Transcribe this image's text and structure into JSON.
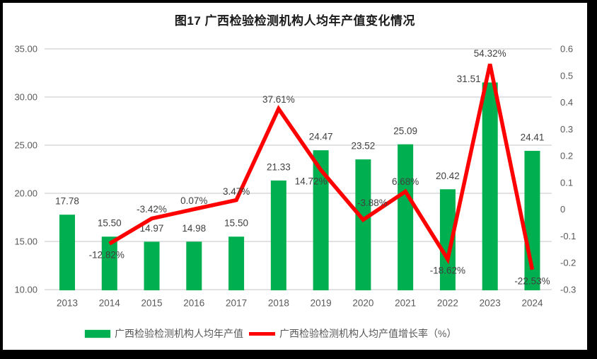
{
  "chart_data": {
    "type": "combo-bar-line",
    "title": "图17  广西检验检测机构人均年产值变化情况",
    "categories": [
      "2013",
      "2014",
      "2015",
      "2016",
      "2017",
      "2018",
      "2019",
      "2020",
      "2021",
      "2022",
      "2023",
      "2024"
    ],
    "series": [
      {
        "name": "广西检验检测机构人均年产值",
        "type": "bar",
        "axis": "left",
        "color": "#00B050",
        "values": [
          17.78,
          15.5,
          14.97,
          14.98,
          15.5,
          21.33,
          24.47,
          23.52,
          25.09,
          20.42,
          31.51,
          24.41
        ]
      },
      {
        "name": "广西检验检测机构人均产值增长率（%）",
        "type": "line",
        "axis": "right",
        "color": "#FF0000",
        "unit": "%",
        "values": [
          null,
          -12.82,
          -3.42,
          0.07,
          3.47,
          37.61,
          14.72,
          -3.88,
          6.68,
          -18.62,
          54.32,
          -22.53
        ]
      }
    ],
    "left_axis": {
      "min": 10,
      "max": 35,
      "tick_labels": [
        "35.00",
        "30.00",
        "25.00",
        "20.00",
        "15.00",
        "10.00"
      ]
    },
    "right_axis": {
      "min": -0.3,
      "max": 0.6,
      "tick_labels": [
        "0.6",
        "0.5",
        "0.4",
        "0.3",
        "0.2",
        "0.1",
        "0",
        "-0.1",
        "-0.2",
        "-0.3"
      ]
    },
    "grid": true,
    "legend_position": "bottom",
    "colors": {
      "gridline": "#D9D9D9",
      "axis_text": "#595959",
      "data_label": "#404040",
      "frame": "#000000",
      "background": "#ffffff"
    }
  }
}
